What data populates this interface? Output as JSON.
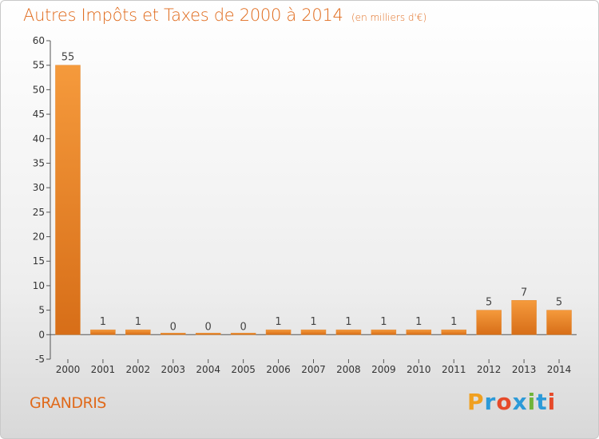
{
  "chart_data": {
    "type": "bar",
    "title": "Autres Impôts et Taxes de 2000 à 2014",
    "subtitle": "(en milliers d'€)",
    "categories": [
      "2000",
      "2001",
      "2002",
      "2003",
      "2004",
      "2005",
      "2006",
      "2007",
      "2008",
      "2009",
      "2010",
      "2011",
      "2012",
      "2013",
      "2014"
    ],
    "values": [
      55,
      1,
      1,
      0,
      0,
      0,
      1,
      1,
      1,
      1,
      1,
      1,
      5,
      7,
      5
    ],
    "data_labels": [
      "55",
      "1",
      "1",
      "0",
      "0",
      "0",
      "1",
      "1",
      "1",
      "1",
      "1",
      "1",
      "5",
      "7",
      "5"
    ],
    "yticks": [
      "-5",
      "0",
      "5",
      "10",
      "15",
      "20",
      "25",
      "30",
      "35",
      "40",
      "45",
      "50",
      "55",
      "60"
    ],
    "ylim": [
      -5,
      60
    ],
    "ystep": 5,
    "grid": false,
    "bar_color": "#f59a3c",
    "bar_color_dark": "#d76e18",
    "axis_color": "#555555"
  },
  "commune": "GRANDRIS",
  "logo": {
    "text": "Proxiti",
    "letters": [
      "P",
      "r",
      "o",
      "x",
      "i",
      "t",
      "i"
    ],
    "colors": [
      "#f0a020",
      "#2c9ad8",
      "#e64a2a",
      "#2c9ad8",
      "#6fb43a",
      "#2c9ad8",
      "#e64a2a"
    ]
  }
}
